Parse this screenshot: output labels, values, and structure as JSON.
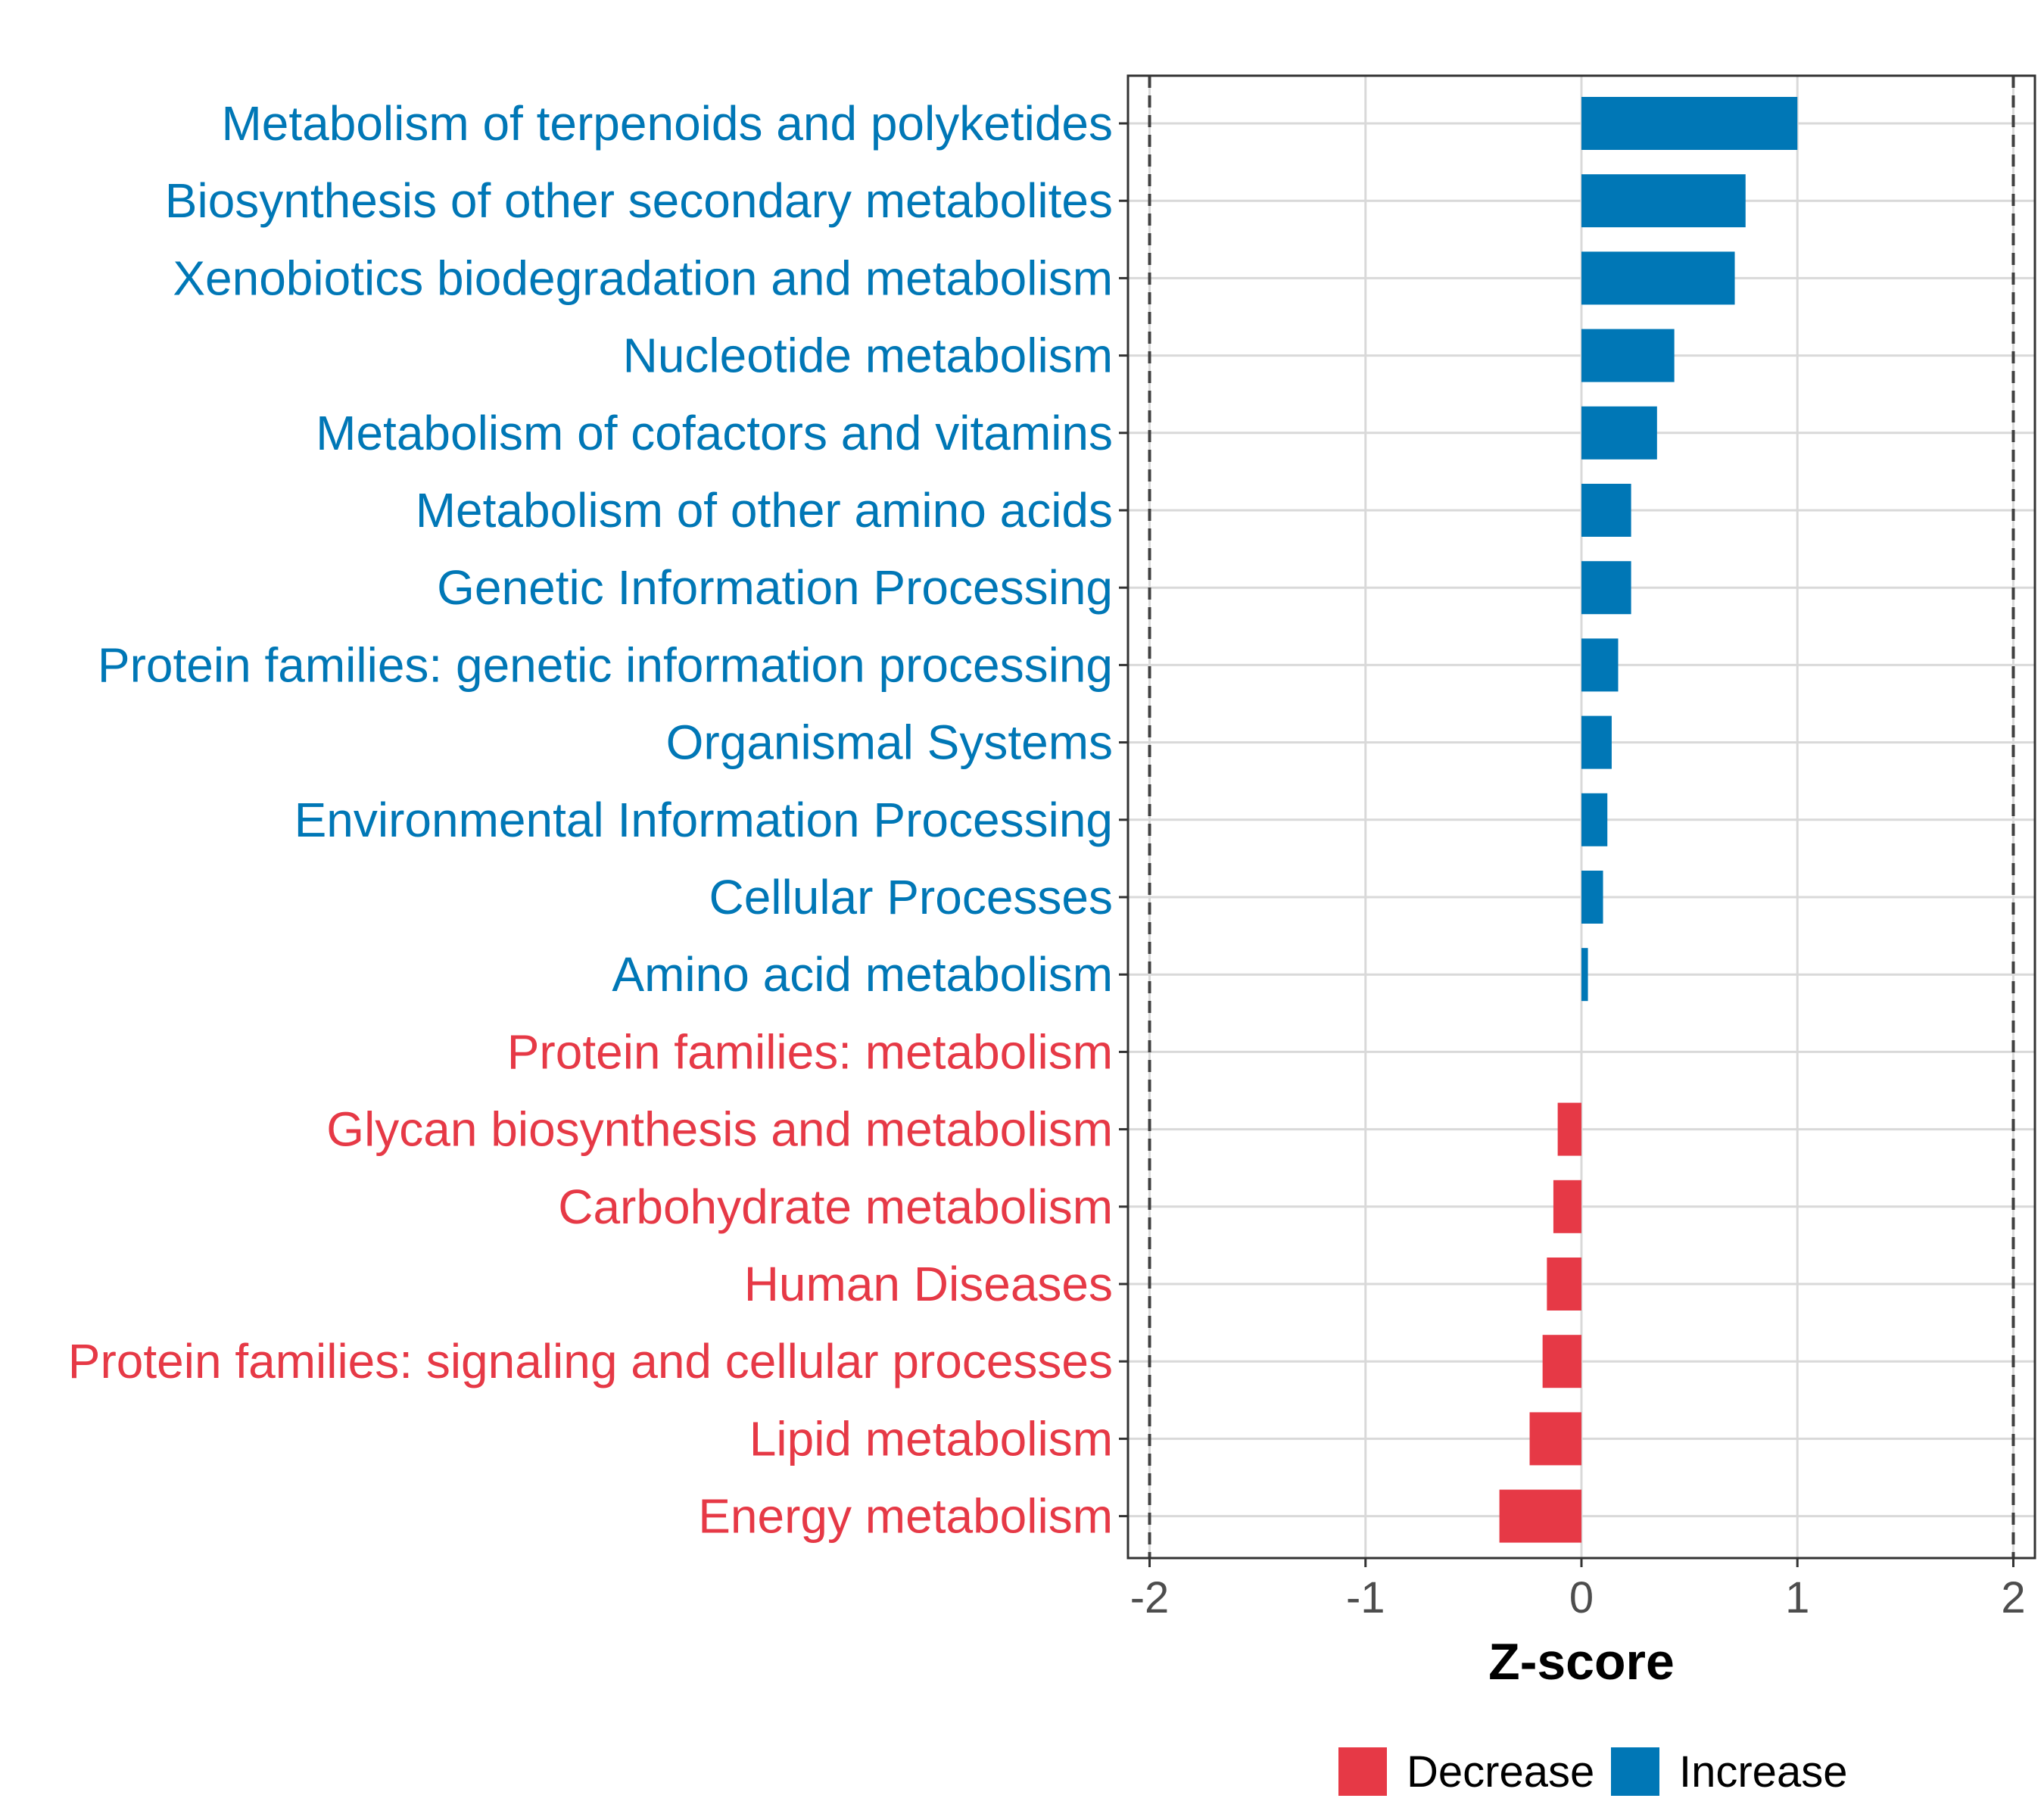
{
  "chart_data": {
    "type": "bar",
    "orientation": "horizontal",
    "xlabel": "Z-score",
    "xlim": [
      -2.1,
      2.1
    ],
    "xticks": [
      -2,
      -1,
      0,
      1,
      2
    ],
    "xtick_labels": [
      "-2",
      "-1",
      "0",
      "1",
      "2"
    ],
    "reference_lines": [
      -2,
      2
    ],
    "grid": true,
    "legend_position": "bottom",
    "categories": [
      "Metabolism of terpenoids and polyketides",
      "Biosynthesis of other secondary metabolites",
      "Xenobiotics biodegradation and metabolism",
      "Nucleotide metabolism",
      "Metabolism of cofactors and vitamins",
      "Metabolism of other amino acids",
      "Genetic Information Processing",
      "Protein families: genetic information processing",
      "Organismal Systems",
      "Environmental Information Processing",
      "Cellular Processes",
      "Amino acid metabolism",
      "Protein families: metabolism",
      "Glycan biosynthesis and metabolism",
      "Carbohydrate metabolism",
      "Human Diseases",
      "Protein families: signaling and cellular processes",
      "Lipid metabolism",
      "Energy metabolism"
    ],
    "values": [
      1.0,
      0.76,
      0.71,
      0.43,
      0.35,
      0.23,
      0.23,
      0.17,
      0.14,
      0.12,
      0.1,
      0.03,
      0.0,
      -0.11,
      -0.13,
      -0.16,
      -0.18,
      -0.24,
      -0.38
    ],
    "groups": [
      "Increase",
      "Increase",
      "Increase",
      "Increase",
      "Increase",
      "Increase",
      "Increase",
      "Increase",
      "Increase",
      "Increase",
      "Increase",
      "Increase",
      "Decrease",
      "Decrease",
      "Decrease",
      "Decrease",
      "Decrease",
      "Decrease",
      "Decrease"
    ],
    "legend": [
      {
        "name": "Decrease",
        "color": "#E63946"
      },
      {
        "name": "Increase",
        "color": "#0077B6"
      }
    ]
  },
  "colors": {
    "increase": "#0077B6",
    "decrease": "#E63946",
    "grid": "#d9d9d9",
    "reference_line": "#404040",
    "panel_border": "#333333"
  }
}
